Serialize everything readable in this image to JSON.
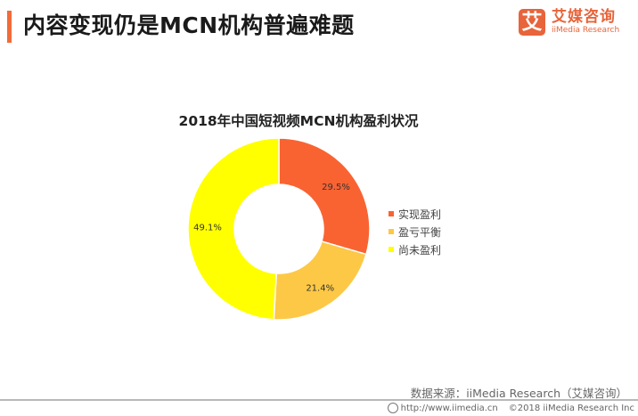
{
  "header": {
    "title": "内容变现仍是MCN机构普遍难题",
    "accent_color": "#f26b3a"
  },
  "logo": {
    "mark": "艾",
    "name_cn": "艾媒咨询",
    "name_en": "iiMedia Research",
    "color": "#e8643a"
  },
  "chart_data": {
    "type": "pie",
    "variant": "donut",
    "title": "2018年中国短视频MCN机构盈利状况",
    "categories": [
      "实现盈利",
      "盈亏平衡",
      "尚未盈利"
    ],
    "values": [
      29.5,
      21.4,
      49.1
    ],
    "labels": [
      "29.5%",
      "21.4%",
      "49.1%"
    ],
    "colors": [
      "#f96332",
      "#fdc846",
      "#ffff00"
    ],
    "legend_position": "right",
    "start_angle": "12 o'clock, clockwise"
  },
  "legend": {
    "items": [
      {
        "label": "实现盈利",
        "color": "#f96332"
      },
      {
        "label": "盈亏平衡",
        "color": "#fdc846"
      },
      {
        "label": "尚未盈利",
        "color": "#ffff00"
      }
    ]
  },
  "source": {
    "text": "数据来源：iiMedia Research（艾媒咨询）"
  },
  "footer": {
    "url": "http://www.iimedia.cn",
    "copyright": "©2018  iiMedia Research  Inc"
  }
}
